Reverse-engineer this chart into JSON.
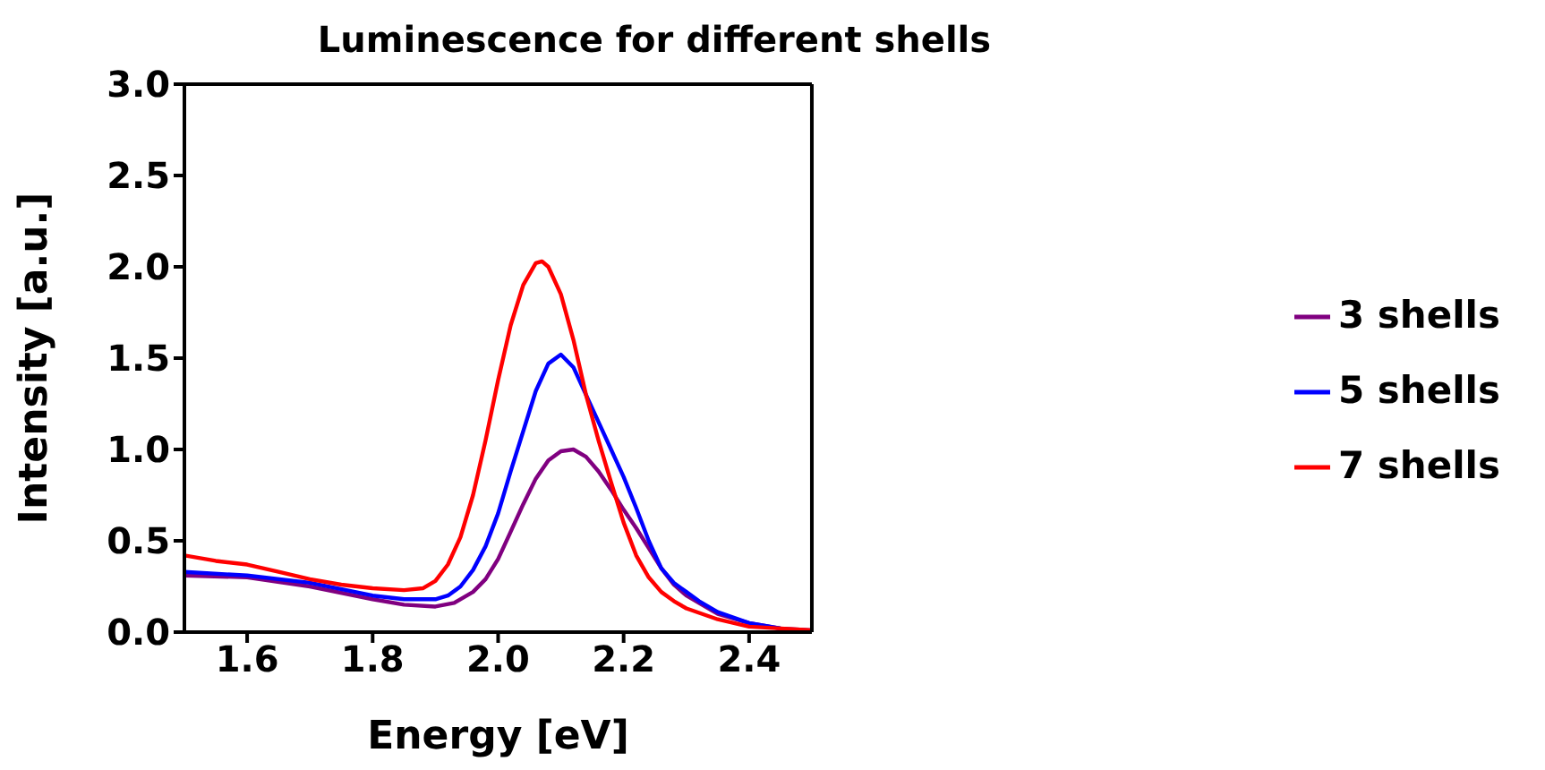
{
  "chart_data": {
    "type": "line",
    "title": "Luminescence for different shells",
    "xlabel": "Energy [eV]",
    "ylabel": "Intensity [a.u.]",
    "xlim": [
      1.5,
      2.5
    ],
    "ylim": [
      0,
      3
    ],
    "xticks": [
      1.6,
      1.8,
      {
        "value": 2,
        "label": "2.0"
      },
      2.2,
      2.4
    ],
    "yticks": [
      {
        "value": 0,
        "label": "0.0"
      },
      0.5,
      {
        "value": 1,
        "label": "1.0"
      },
      1.5,
      {
        "value": 2,
        "label": "2.0"
      },
      2.5,
      {
        "value": 3,
        "label": "3.0"
      }
    ],
    "grid": false,
    "legend": "right",
    "marker": "none",
    "line_style": "solid",
    "series": [
      {
        "name": "3 shells",
        "color": "#800080",
        "x": [
          1.5,
          1.6,
          1.7,
          1.8,
          1.85,
          1.9,
          1.93,
          1.96,
          1.98,
          2.0,
          2.02,
          2.04,
          2.06,
          2.08,
          2.1,
          2.12,
          2.14,
          2.16,
          2.18,
          2.2,
          2.22,
          2.24,
          2.26,
          2.28,
          2.3,
          2.32,
          2.35,
          2.4,
          2.45,
          2.5
        ],
        "values": [
          0.31,
          0.3,
          0.25,
          0.18,
          0.15,
          0.14,
          0.16,
          0.22,
          0.29,
          0.4,
          0.55,
          0.7,
          0.84,
          0.94,
          0.99,
          1.0,
          0.96,
          0.88,
          0.78,
          0.67,
          0.57,
          0.46,
          0.35,
          0.26,
          0.2,
          0.16,
          0.1,
          0.05,
          0.02,
          0.01
        ]
      },
      {
        "name": "5 shells",
        "color": "#0000ff",
        "x": [
          1.5,
          1.6,
          1.7,
          1.8,
          1.85,
          1.9,
          1.92,
          1.94,
          1.96,
          1.98,
          2.0,
          2.02,
          2.04,
          2.06,
          2.08,
          2.1,
          2.12,
          2.14,
          2.16,
          2.18,
          2.2,
          2.22,
          2.24,
          2.26,
          2.28,
          2.3,
          2.32,
          2.35,
          2.4,
          2.45
        ],
        "values": [
          0.33,
          0.31,
          0.27,
          0.2,
          0.18,
          0.18,
          0.2,
          0.25,
          0.34,
          0.47,
          0.65,
          0.88,
          1.1,
          1.32,
          1.47,
          1.52,
          1.45,
          1.3,
          1.15,
          1.0,
          0.85,
          0.68,
          0.5,
          0.35,
          0.27,
          0.22,
          0.17,
          0.11,
          0.05,
          0.02
        ]
      },
      {
        "name": "7 shells",
        "color": "#ff0000",
        "x": [
          1.5,
          1.55,
          1.6,
          1.65,
          1.7,
          1.75,
          1.8,
          1.85,
          1.88,
          1.9,
          1.92,
          1.94,
          1.96,
          1.98,
          2.0,
          2.02,
          2.04,
          2.06,
          2.07,
          2.08,
          2.1,
          2.12,
          2.14,
          2.16,
          2.18,
          2.2,
          2.22,
          2.24,
          2.26,
          2.28,
          2.3,
          2.35,
          2.4,
          2.45,
          2.5
        ],
        "values": [
          0.42,
          0.39,
          0.37,
          0.33,
          0.29,
          0.26,
          0.24,
          0.23,
          0.24,
          0.28,
          0.37,
          0.52,
          0.75,
          1.05,
          1.38,
          1.68,
          1.9,
          2.02,
          2.03,
          2.0,
          1.85,
          1.6,
          1.3,
          1.05,
          0.82,
          0.6,
          0.42,
          0.3,
          0.22,
          0.17,
          0.13,
          0.07,
          0.03,
          0.02,
          0.01
        ]
      }
    ]
  }
}
